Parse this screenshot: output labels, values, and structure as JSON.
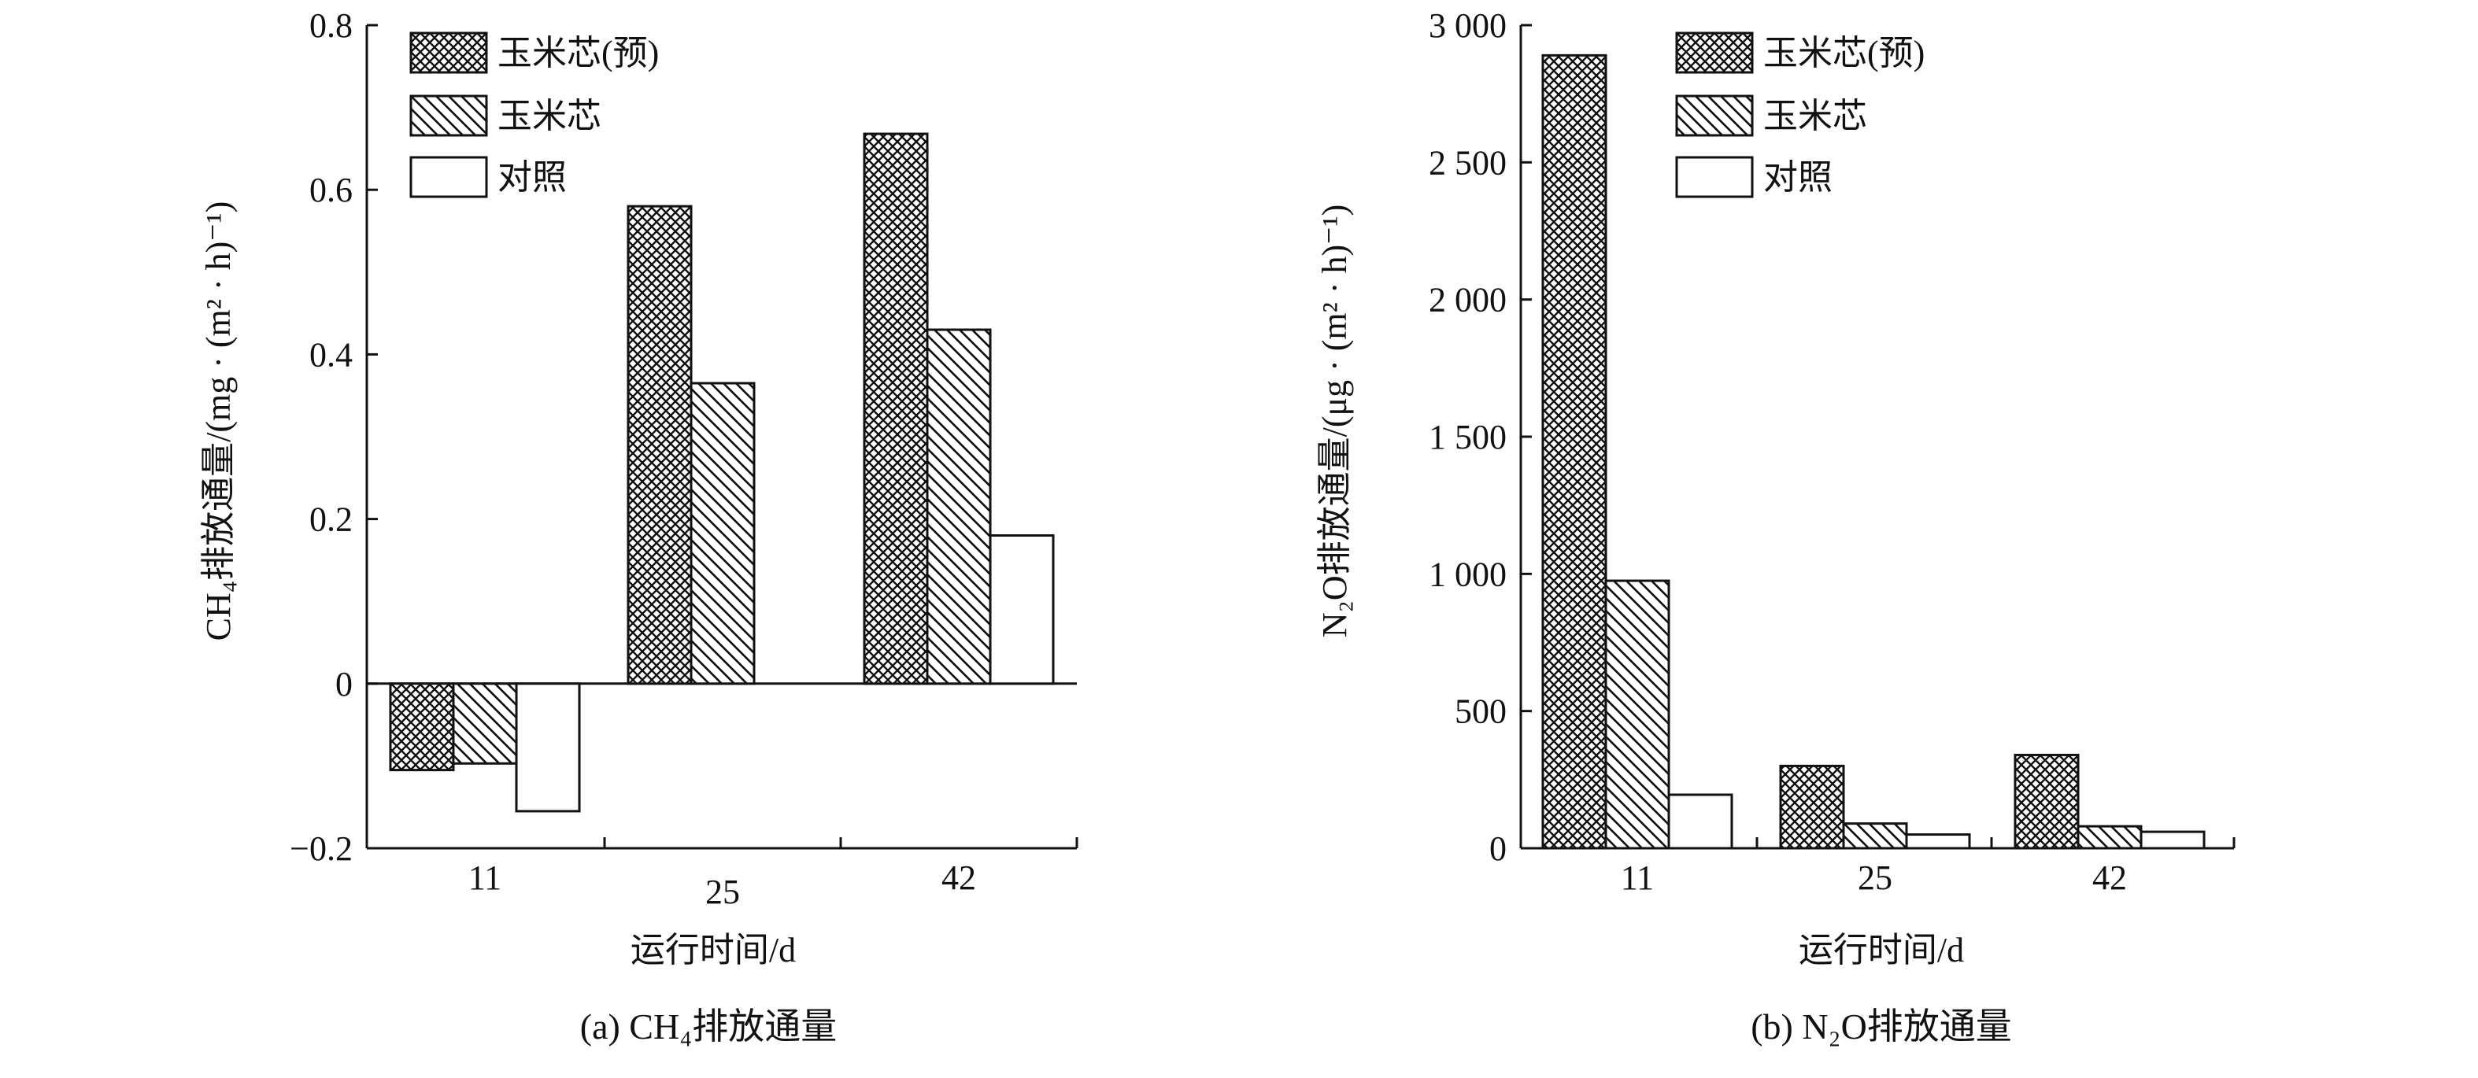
{
  "colors": {
    "ink": "#111111",
    "background": "#ffffff"
  },
  "chart_data": [
    {
      "type": "bar",
      "caption": "(a) CH₄排放通量",
      "xlabel": "运行时间/d",
      "ylabel": "CH₄排放通量/(mg · (m² · h)⁻¹)",
      "categories": [
        "11",
        "25",
        "42"
      ],
      "ylim": [
        -0.2,
        0.8
      ],
      "yticks": [
        -0.2,
        0,
        0.2,
        0.4,
        0.6,
        0.8
      ],
      "ytick_labels": [
        "−0.2",
        "0",
        "0.2",
        "0.4",
        "0.6",
        "0.8"
      ],
      "legend_position": "top-left",
      "series": [
        {
          "name": "玉米芯(预)",
          "pattern": "crosshatch",
          "values": [
            -0.105,
            0.58,
            0.668
          ]
        },
        {
          "name": "玉米芯",
          "pattern": "diagonal",
          "values": [
            -0.097,
            0.365,
            0.43
          ]
        },
        {
          "name": "对照",
          "pattern": "blank",
          "values": [
            -0.155,
            0,
            0.18
          ]
        }
      ]
    },
    {
      "type": "bar",
      "caption": "(b) N₂O排放通量",
      "xlabel": "运行时间/d",
      "ylabel": "N₂O排放通量/(μg · (m² · h)⁻¹)",
      "categories": [
        "11",
        "25",
        "42"
      ],
      "ylim": [
        0,
        3000
      ],
      "yticks": [
        0,
        500,
        1000,
        1500,
        2000,
        2500,
        3000
      ],
      "ytick_labels": [
        "0",
        "500",
        "1 000",
        "1 500",
        "2 000",
        "2 500",
        "3 000"
      ],
      "legend_position": "top-left",
      "series": [
        {
          "name": "玉米芯(预)",
          "pattern": "crosshatch",
          "values": [
            2890,
            300,
            340
          ]
        },
        {
          "name": "玉米芯",
          "pattern": "diagonal",
          "values": [
            975,
            90,
            80
          ]
        },
        {
          "name": "对照",
          "pattern": "blank",
          "values": [
            195,
            50,
            60
          ]
        }
      ]
    }
  ]
}
